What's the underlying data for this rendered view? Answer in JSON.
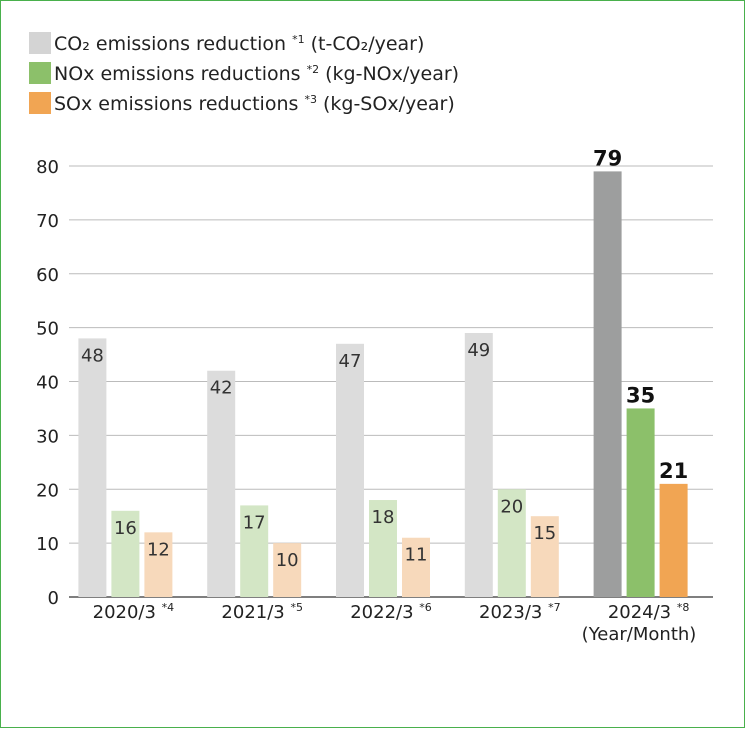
{
  "chart_data": {
    "type": "bar",
    "title": "",
    "xlabel": "(Year/Month)",
    "ylabel": "",
    "ylim": [
      0,
      80
    ],
    "yticks": [
      0,
      10,
      20,
      30,
      40,
      50,
      60,
      70,
      80
    ],
    "grid": "horizontal",
    "legend_position": "top-left",
    "categories": [
      {
        "label": "2020/3",
        "note": "*4"
      },
      {
        "label": "2021/3",
        "note": "*5"
      },
      {
        "label": "2022/3",
        "note": "*6"
      },
      {
        "label": "2023/3",
        "note": "*7"
      },
      {
        "label": "2024/3",
        "note": "*8"
      }
    ],
    "series": [
      {
        "name": "CO₂ emissions reduction",
        "note": "*1",
        "unit": "(t-CO₂/year)",
        "color_light": "#dcdcdc",
        "color_highlight": "#9d9e9e",
        "values": [
          48,
          42,
          47,
          49,
          79
        ]
      },
      {
        "name": "NOx emissions reductions",
        "note": "*2",
        "unit": "(kg-NOx/year)",
        "color_light": "#d3e6c5",
        "color_highlight": "#8cc06a",
        "values": [
          16,
          17,
          18,
          20,
          35
        ]
      },
      {
        "name": "SOx emissions reductions",
        "note": "*3",
        "unit": "(kg-SOx/year)",
        "color_light": "#f7d9bb",
        "color_highlight": "#f1a553",
        "values": [
          12,
          10,
          11,
          15,
          21
        ]
      }
    ],
    "highlight_category_index": 4,
    "border_color": "#49b04c"
  }
}
